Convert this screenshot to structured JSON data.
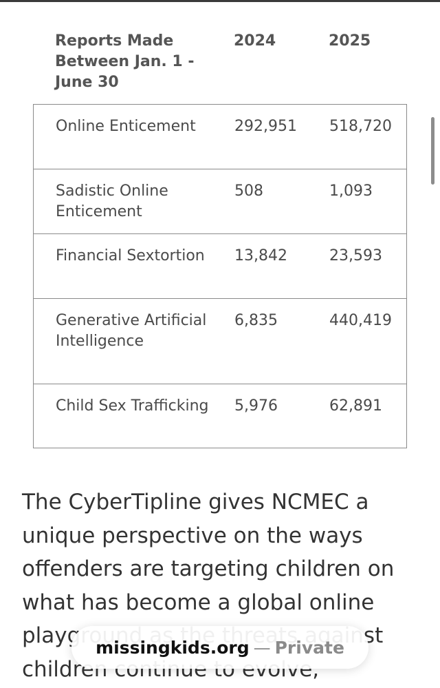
{
  "table": {
    "headers": {
      "category": "Reports Made Between Jan. 1 - June 30",
      "year_1": "2024",
      "year_2": "2025"
    },
    "rows": [
      {
        "category": "Online Enticement",
        "year_1": "292,951",
        "year_2": "518,720"
      },
      {
        "category": "Sadistic Online Enticement",
        "year_1": "508",
        "year_2": "1,093"
      },
      {
        "category": "Financial Sextortion",
        "year_1": "13,842",
        "year_2": "23,593"
      },
      {
        "category": "Generative Artificial Intelligence",
        "year_1": "6,835",
        "year_2": "440,419"
      },
      {
        "category": "Child Sex Trafficking",
        "year_1": "5,976",
        "year_2": "62,891"
      }
    ]
  },
  "article": {
    "lines": [
      "The CyberTipline gives NCMEC a",
      "unique perspective on the ways",
      "offenders are targeting children on",
      "what has become a global online",
      "playground as the threats against",
      "children continue to evolve,"
    ]
  },
  "address_bar": {
    "domain": "missingkids.org",
    "separator": "—",
    "mode": "Private"
  }
}
